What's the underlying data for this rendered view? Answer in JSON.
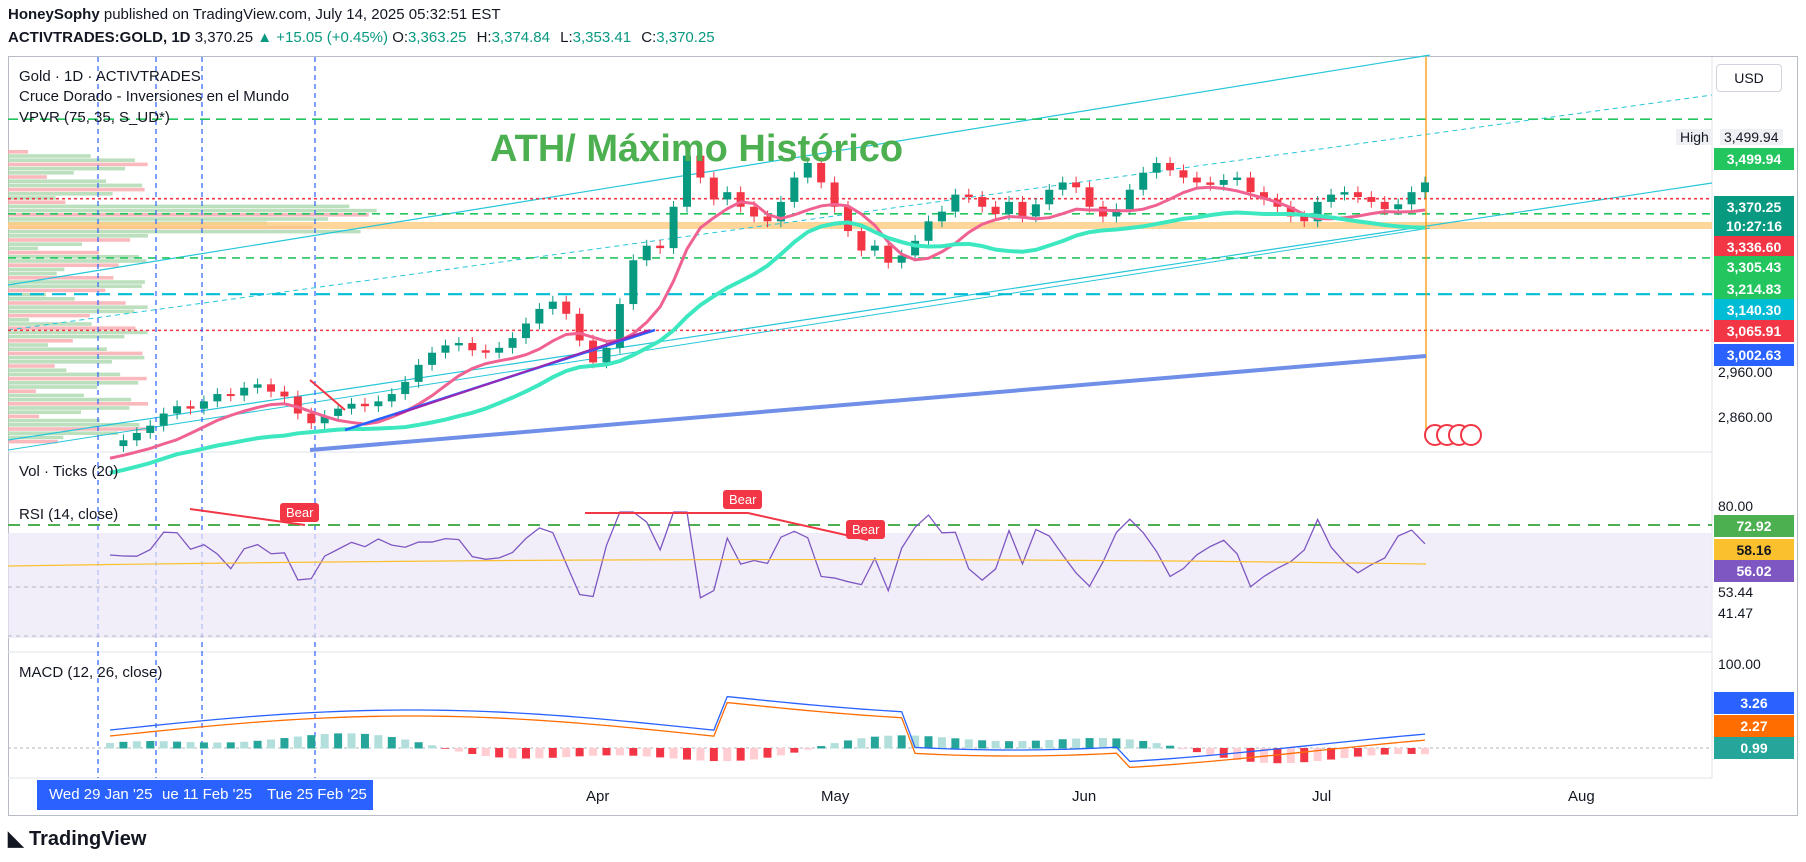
{
  "header": {
    "author": "HoneySophy",
    "published": "published on TradingView.com, July 14, 2025 05:32:51 EST",
    "symbol": "ACTIVTRADES:GOLD, 1D",
    "last": "3,370.25",
    "change": "▲ +15.05 (+0.45%)",
    "o_label": "O:",
    "o": "3,363.25",
    "h_label": "H:",
    "h": "3,374.84",
    "l_label": "L:",
    "l": "3,353.41",
    "c_label": "C:",
    "c": "3,370.25"
  },
  "legend": {
    "title": "Gold · 1D · ACTIVTRADES",
    "indicator1": "Cruce Dorado - Inversiones en el Mundo",
    "indicator2": "VPVR (75, 35, S_UD*)",
    "vol": "Vol · Ticks (20)",
    "rsi": "RSI (14, close)",
    "macd": "MACD (12, 26, close)"
  },
  "annotation": "ATH/ Máximo Histórico",
  "signals": [
    "Bear",
    "Bear",
    "Bear"
  ],
  "currency": "USD",
  "high_label": "High",
  "price_scale": {
    "high": "3,499.94",
    "tags": [
      {
        "text": "3,499.94",
        "color": "#22c55e"
      },
      {
        "text": "3,370.25",
        "color": "#089981"
      },
      {
        "text": "10:27:16",
        "color": "#089981"
      },
      {
        "text": "3,336.60",
        "color": "#f23645"
      },
      {
        "text": "3,305.43",
        "color": "#22c55e"
      },
      {
        "text": "3,214.83",
        "color": "#22c55e"
      },
      {
        "text": "3,140.30",
        "color": "#00bcd4"
      },
      {
        "text": "3,065.91",
        "color": "#f23645"
      },
      {
        "text": "3,002.63",
        "color": "#2962ff"
      }
    ],
    "ticks": [
      "2,960.00",
      "2,860.00"
    ]
  },
  "rsi_scale": {
    "tags": [
      {
        "text": "72.92",
        "color": "#4caf50"
      },
      {
        "text": "58.16",
        "color": "#fbc02d"
      },
      {
        "text": "56.02",
        "color": "#7e57c2"
      }
    ],
    "ticks": [
      "80.00",
      "53.44",
      "41.47"
    ]
  },
  "macd_scale": {
    "ticks": [
      "100.00"
    ],
    "tags": [
      {
        "text": "3.26",
        "color": "#2962ff"
      },
      {
        "text": "2.27",
        "color": "#ff6d00"
      },
      {
        "text": "0.99",
        "color": "#26a69a"
      }
    ]
  },
  "x_axis": {
    "months": [
      "Apr",
      "May",
      "Jun",
      "Jul",
      "Aug"
    ],
    "highlight_dates": [
      "Wed 29 Jan '25",
      "ue 11 Feb '25",
      "Tue 25 Feb '25"
    ]
  },
  "footer": "TradingView",
  "chart_data": {
    "type": "candlestick",
    "title": "Gold · 1D · ACTIVTRADES",
    "close_path": [
      2828,
      2840,
      2855,
      2870,
      2895,
      2910,
      2905,
      2920,
      2935,
      2932,
      2948,
      2955,
      2940,
      2930,
      2895,
      2875,
      2890,
      2905,
      2915,
      2910,
      2920,
      2935,
      2960,
      2995,
      3020,
      3035,
      3040,
      3025,
      3020,
      3030,
      3050,
      3080,
      3110,
      3125,
      3100,
      3045,
      3000,
      3030,
      3120,
      3210,
      3240,
      3235,
      3320,
      3425,
      3380,
      3335,
      3350,
      3320,
      3300,
      3290,
      3330,
      3380,
      3410,
      3370,
      3320,
      3270,
      3230,
      3240,
      3205,
      3220,
      3250,
      3290,
      3310,
      3345,
      3340,
      3320,
      3305,
      3330,
      3300,
      3325,
      3355,
      3370,
      3360,
      3320,
      3300,
      3315,
      3355,
      3390,
      3410,
      3395,
      3380,
      3370,
      3365,
      3375,
      3380,
      3350,
      3335,
      3320,
      3300,
      3290,
      3330,
      3345,
      3350,
      3340,
      3330,
      3315,
      3325,
      3350,
      3370
    ],
    "ath": 3499.94,
    "levels": [
      3499.94,
      3336.6,
      3305.43,
      3214.83,
      3140.3,
      3065.91
    ],
    "ylim": [
      2820,
      3560
    ],
    "rsi_levels": [
      72.92,
      58.16,
      56.02,
      80.0,
      53.44,
      41.47
    ],
    "macd_levels": [
      3.26,
      2.27,
      0.99,
      100.0
    ]
  }
}
